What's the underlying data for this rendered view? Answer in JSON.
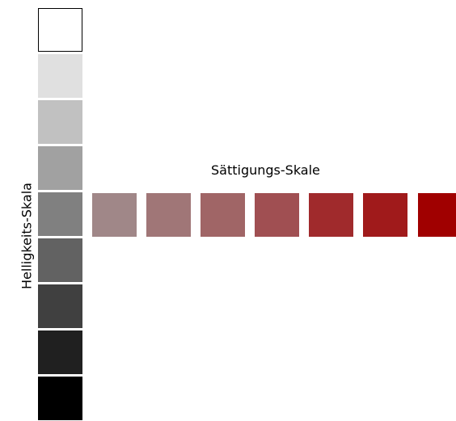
{
  "labels": {
    "saturation_scale": "Sättigungs-Skale",
    "lightness_scale": "Helligkeits-Skala"
  },
  "lightness_scale": {
    "swatches": [
      {
        "color": "#ffffff"
      },
      {
        "color": "#e0e0e0"
      },
      {
        "color": "#c1c1c1"
      },
      {
        "color": "#a1a1a1"
      },
      {
        "color": "#808080"
      },
      {
        "color": "#626262"
      },
      {
        "color": "#404040"
      },
      {
        "color": "#202020"
      },
      {
        "color": "#000000"
      }
    ]
  },
  "saturation_scale": {
    "swatches": [
      {
        "color": "#a08788"
      },
      {
        "color": "#a07677"
      },
      {
        "color": "#a06566"
      },
      {
        "color": "#a04f52"
      },
      {
        "color": "#a02a2c"
      },
      {
        "color": "#a01a1b"
      },
      {
        "color": "#a00000"
      }
    ]
  }
}
